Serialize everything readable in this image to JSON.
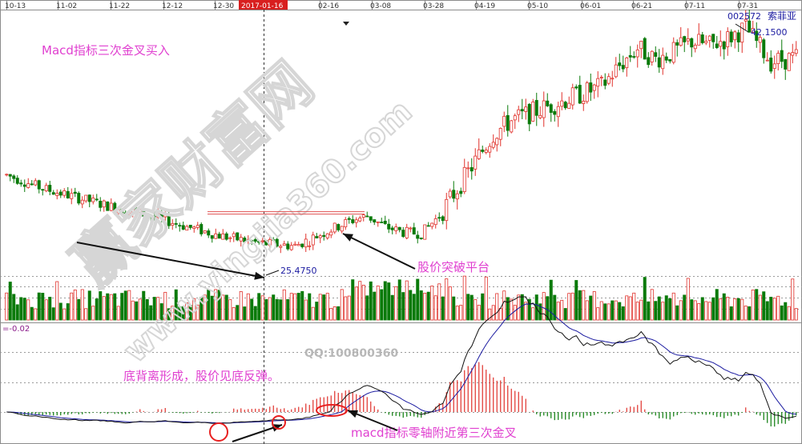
{
  "chart_data": {
    "type": "candlestick",
    "x_ticks": [
      "10-13",
      "11-02",
      "11-22",
      "12-12",
      "12-30",
      "2017-01-16",
      "02-16",
      "03-08",
      "03-28",
      "04-19",
      "05-10",
      "06-01",
      "06-21",
      "07-11",
      "07-31"
    ],
    "highlighted_date": "2017-01-16",
    "stock_code": "002572",
    "stock_name": "索菲亚",
    "price_low_label": "25.4750",
    "price_high_label": "42.1500",
    "macd_value_label": "=-0.02",
    "watermark": {
      "main": "赢家财富网",
      "sub": "www.yingjia360.com",
      "qq": "QQ:100800360"
    },
    "annotations": {
      "title": "Macd指标三次金叉买入",
      "breakout": "股价突破平台",
      "divergence": "底背离形成，股价见底反弹。",
      "third_cross": "macd指标零轴附近第三次金叉"
    },
    "price_path_days": [
      0,
      10,
      20,
      30,
      40,
      50,
      60,
      70,
      80,
      85,
      90,
      95,
      100,
      105,
      110,
      115,
      120,
      125,
      130,
      135,
      140,
      145,
      150,
      155,
      160,
      165,
      170,
      175,
      180,
      185,
      190,
      195,
      200,
      205,
      212,
      219
    ],
    "price_path_values": [
      31.0,
      30.0,
      29.3,
      28.6,
      28.0,
      27.2,
      26.5,
      26.0,
      25.8,
      26.4,
      27.0,
      27.6,
      28.0,
      27.2,
      26.8,
      26.7,
      28.0,
      30.0,
      32.0,
      34.0,
      35.0,
      35.5,
      36.0,
      36.5,
      37.0,
      37.5,
      39.0,
      40.3,
      39.5,
      40.0,
      40.8,
      40.5,
      41.0,
      41.8,
      39.3,
      39.6
    ],
    "price_range": [
      24.0,
      43.0
    ],
    "platform_price": 28.3,
    "low_day": 84,
    "high_day": 204,
    "volume_range": [
      0,
      1.0
    ],
    "macd_range": [
      -1.3,
      1.3
    ],
    "colors": {
      "up": "#e0302a",
      "down": "#0a7a0a",
      "dif_line": "#111111",
      "dea_line": "#1a1aa0",
      "annotation": "#e040d0",
      "circle": "#e82020",
      "arrow": "#111111",
      "date_badge": "#d81e1e"
    }
  }
}
